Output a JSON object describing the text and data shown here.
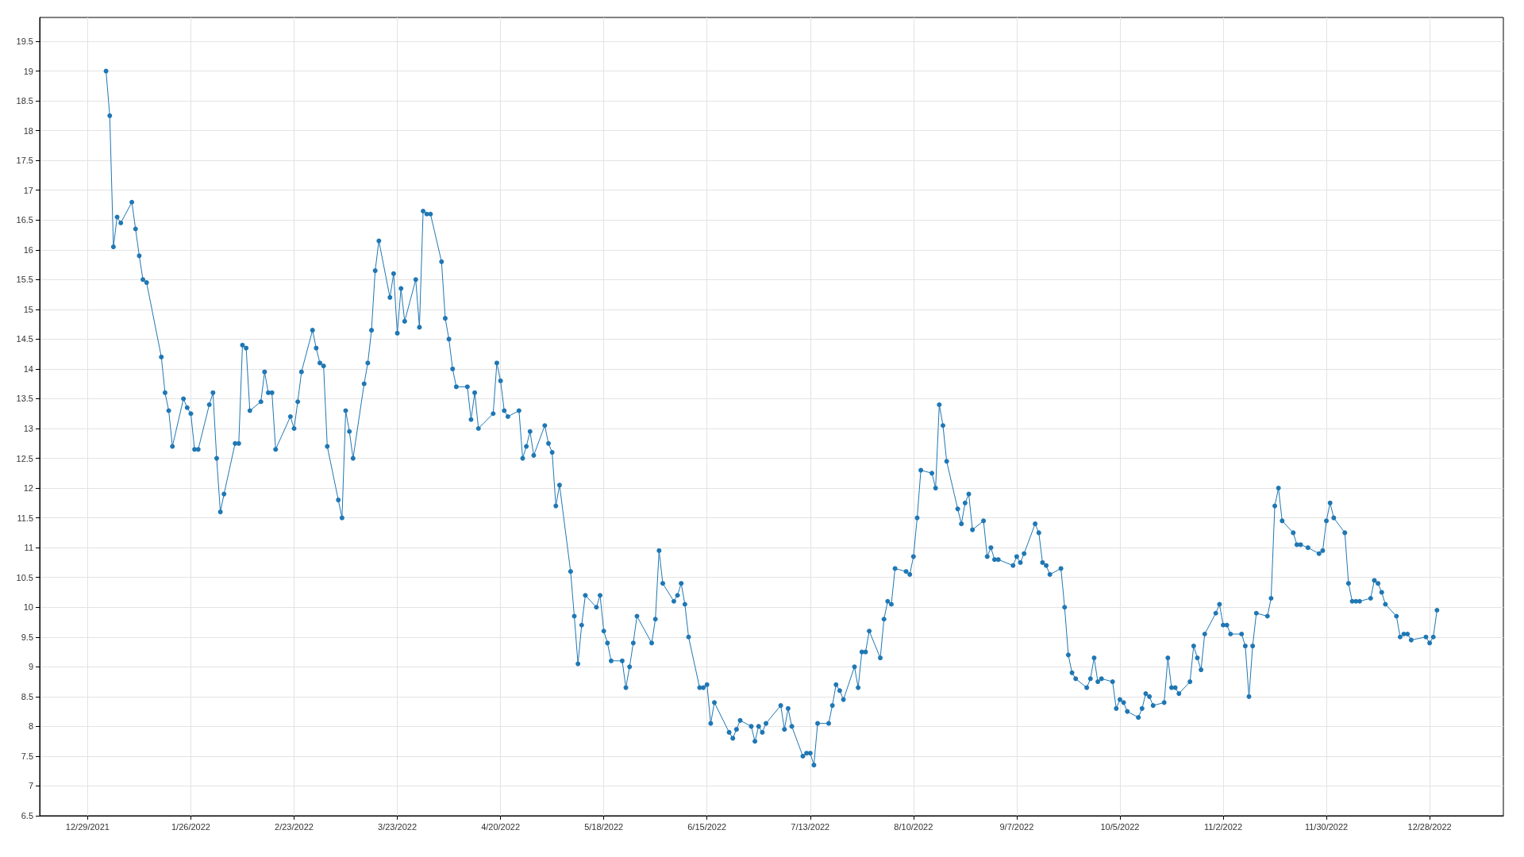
{
  "chart_data": {
    "type": "line",
    "marker": "circle",
    "line_style": "solid",
    "grid": true,
    "legend": false,
    "xlim": [
      "2021-12-16",
      "2023-01-17"
    ],
    "xticks": [
      {
        "value": "2021-12-29",
        "label": "12/29/2021"
      },
      {
        "value": "2022-01-26",
        "label": "1/26/2022"
      },
      {
        "value": "2022-02-23",
        "label": "2/23/2022"
      },
      {
        "value": "2022-03-23",
        "label": "3/23/2022"
      },
      {
        "value": "2022-04-20",
        "label": "4/20/2022"
      },
      {
        "value": "2022-05-18",
        "label": "5/18/2022"
      },
      {
        "value": "2022-06-15",
        "label": "6/15/2022"
      },
      {
        "value": "2022-07-13",
        "label": "7/13/2022"
      },
      {
        "value": "2022-08-10",
        "label": "8/10/2022"
      },
      {
        "value": "2022-09-07",
        "label": "9/7/2022"
      },
      {
        "value": "2022-10-05",
        "label": "10/5/2022"
      },
      {
        "value": "2022-11-02",
        "label": "11/2/2022"
      },
      {
        "value": "2022-11-30",
        "label": "11/30/2022"
      },
      {
        "value": "2022-12-28",
        "label": "12/28/2022"
      }
    ],
    "ylim": [
      6.5,
      19.9
    ],
    "yticks": [
      6.5,
      7,
      7.5,
      8,
      8.5,
      9,
      9.5,
      10,
      10.5,
      11,
      11.5,
      12,
      12.5,
      13,
      13.5,
      14,
      14.5,
      15,
      15.5,
      16,
      16.5,
      17,
      17.5,
      18,
      18.5,
      19,
      19.5
    ],
    "series": [
      {
        "color": "#1f77b4",
        "x": [
          "2022-01-03",
          "2022-01-04",
          "2022-01-05",
          "2022-01-06",
          "2022-01-07",
          "2022-01-10",
          "2022-01-11",
          "2022-01-12",
          "2022-01-13",
          "2022-01-14",
          "2022-01-18",
          "2022-01-19",
          "2022-01-20",
          "2022-01-21",
          "2022-01-24",
          "2022-01-25",
          "2022-01-26",
          "2022-01-27",
          "2022-01-28",
          "2022-01-31",
          "2022-02-01",
          "2022-02-02",
          "2022-02-03",
          "2022-02-04",
          "2022-02-07",
          "2022-02-08",
          "2022-02-09",
          "2022-02-10",
          "2022-02-11",
          "2022-02-14",
          "2022-02-15",
          "2022-02-16",
          "2022-02-17",
          "2022-02-18",
          "2022-02-22",
          "2022-02-23",
          "2022-02-24",
          "2022-02-25",
          "2022-02-28",
          "2022-03-01",
          "2022-03-02",
          "2022-03-03",
          "2022-03-04",
          "2022-03-07",
          "2022-03-08",
          "2022-03-09",
          "2022-03-10",
          "2022-03-11",
          "2022-03-14",
          "2022-03-15",
          "2022-03-16",
          "2022-03-17",
          "2022-03-18",
          "2022-03-21",
          "2022-03-22",
          "2022-03-23",
          "2022-03-24",
          "2022-03-25",
          "2022-03-28",
          "2022-03-29",
          "2022-03-30",
          "2022-03-31",
          "2022-04-01",
          "2022-04-04",
          "2022-04-05",
          "2022-04-06",
          "2022-04-07",
          "2022-04-08",
          "2022-04-11",
          "2022-04-12",
          "2022-04-13",
          "2022-04-14",
          "2022-04-18",
          "2022-04-19",
          "2022-04-20",
          "2022-04-21",
          "2022-04-22",
          "2022-04-25",
          "2022-04-26",
          "2022-04-27",
          "2022-04-28",
          "2022-04-29",
          "2022-05-02",
          "2022-05-03",
          "2022-05-04",
          "2022-05-05",
          "2022-05-06",
          "2022-05-09",
          "2022-05-10",
          "2022-05-11",
          "2022-05-12",
          "2022-05-13",
          "2022-05-16",
          "2022-05-17",
          "2022-05-18",
          "2022-05-19",
          "2022-05-20",
          "2022-05-23",
          "2022-05-24",
          "2022-05-25",
          "2022-05-26",
          "2022-05-27",
          "2022-05-31",
          "2022-06-01",
          "2022-06-02",
          "2022-06-03",
          "2022-06-06",
          "2022-06-07",
          "2022-06-08",
          "2022-06-09",
          "2022-06-10",
          "2022-06-13",
          "2022-06-14",
          "2022-06-15",
          "2022-06-16",
          "2022-06-17",
          "2022-06-21",
          "2022-06-22",
          "2022-06-23",
          "2022-06-24",
          "2022-06-27",
          "2022-06-28",
          "2022-06-29",
          "2022-06-30",
          "2022-07-01",
          "2022-07-05",
          "2022-07-06",
          "2022-07-07",
          "2022-07-08",
          "2022-07-11",
          "2022-07-12",
          "2022-07-13",
          "2022-07-14",
          "2022-07-15",
          "2022-07-18",
          "2022-07-19",
          "2022-07-20",
          "2022-07-21",
          "2022-07-22",
          "2022-07-25",
          "2022-07-26",
          "2022-07-27",
          "2022-07-28",
          "2022-07-29",
          "2022-08-01",
          "2022-08-02",
          "2022-08-03",
          "2022-08-04",
          "2022-08-05",
          "2022-08-08",
          "2022-08-09",
          "2022-08-10",
          "2022-08-11",
          "2022-08-12",
          "2022-08-15",
          "2022-08-16",
          "2022-08-17",
          "2022-08-18",
          "2022-08-19",
          "2022-08-22",
          "2022-08-23",
          "2022-08-24",
          "2022-08-25",
          "2022-08-26",
          "2022-08-29",
          "2022-08-30",
          "2022-08-31",
          "2022-09-01",
          "2022-09-02",
          "2022-09-06",
          "2022-09-07",
          "2022-09-08",
          "2022-09-09",
          "2022-09-12",
          "2022-09-13",
          "2022-09-14",
          "2022-09-15",
          "2022-09-16",
          "2022-09-19",
          "2022-09-20",
          "2022-09-21",
          "2022-09-22",
          "2022-09-23",
          "2022-09-26",
          "2022-09-27",
          "2022-09-28",
          "2022-09-29",
          "2022-09-30",
          "2022-10-03",
          "2022-10-04",
          "2022-10-05",
          "2022-10-06",
          "2022-10-07",
          "2022-10-10",
          "2022-10-11",
          "2022-10-12",
          "2022-10-13",
          "2022-10-14",
          "2022-10-17",
          "2022-10-18",
          "2022-10-19",
          "2022-10-20",
          "2022-10-21",
          "2022-10-24",
          "2022-10-25",
          "2022-10-26",
          "2022-10-27",
          "2022-10-28",
          "2022-10-31",
          "2022-11-01",
          "2022-11-02",
          "2022-11-03",
          "2022-11-04",
          "2022-11-07",
          "2022-11-08",
          "2022-11-09",
          "2022-11-10",
          "2022-11-11",
          "2022-11-14",
          "2022-11-15",
          "2022-11-16",
          "2022-11-17",
          "2022-11-18",
          "2022-11-21",
          "2022-11-22",
          "2022-11-23",
          "2022-11-25",
          "2022-11-28",
          "2022-11-29",
          "2022-11-30",
          "2022-12-01",
          "2022-12-02",
          "2022-12-05",
          "2022-12-06",
          "2022-12-07",
          "2022-12-08",
          "2022-12-09",
          "2022-12-12",
          "2022-12-13",
          "2022-12-14",
          "2022-12-15",
          "2022-12-16",
          "2022-12-19",
          "2022-12-20",
          "2022-12-21",
          "2022-12-22",
          "2022-12-23",
          "2022-12-27",
          "2022-12-28",
          "2022-12-29",
          "2022-12-30"
        ],
        "values": [
          19.0,
          18.25,
          16.05,
          16.55,
          16.45,
          16.8,
          16.35,
          15.9,
          15.5,
          15.45,
          14.2,
          13.6,
          13.3,
          12.7,
          13.5,
          13.35,
          13.25,
          12.65,
          12.65,
          13.4,
          13.6,
          12.5,
          11.6,
          11.9,
          12.75,
          12.75,
          14.4,
          14.35,
          13.3,
          13.45,
          13.95,
          13.6,
          13.6,
          12.65,
          13.2,
          13.0,
          13.45,
          13.95,
          14.65,
          14.35,
          14.1,
          14.05,
          12.7,
          11.8,
          11.5,
          13.3,
          12.95,
          12.5,
          13.75,
          14.1,
          14.65,
          15.65,
          16.15,
          15.2,
          15.6,
          14.6,
          15.35,
          14.8,
          15.5,
          14.7,
          16.65,
          16.6,
          16.6,
          15.8,
          14.85,
          14.5,
          14.0,
          13.7,
          13.7,
          13.15,
          13.6,
          13.0,
          13.25,
          14.1,
          13.8,
          13.3,
          13.2,
          13.3,
          12.5,
          12.7,
          12.95,
          12.55,
          13.05,
          12.75,
          12.6,
          11.7,
          12.05,
          10.6,
          9.85,
          9.05,
          9.7,
          10.2,
          10.0,
          10.2,
          9.6,
          9.4,
          9.1,
          9.1,
          8.65,
          9.0,
          9.4,
          9.85,
          9.4,
          9.8,
          10.95,
          10.4,
          10.1,
          10.2,
          10.4,
          10.05,
          9.5,
          8.65,
          8.65,
          8.7,
          8.05,
          8.4,
          7.9,
          7.8,
          7.95,
          8.1,
          8.0,
          7.75,
          8.0,
          7.9,
          8.05,
          8.35,
          7.95,
          8.3,
          8.0,
          7.5,
          7.55,
          7.55,
          7.35,
          8.05,
          8.05,
          8.35,
          8.7,
          8.6,
          8.45,
          9.0,
          8.65,
          9.25,
          9.25,
          9.6,
          9.15,
          9.8,
          10.1,
          10.05,
          10.65,
          10.6,
          10.55,
          10.85,
          11.5,
          12.3,
          12.25,
          12.0,
          13.4,
          13.05,
          12.45,
          11.65,
          11.4,
          11.75,
          11.9,
          11.3,
          11.45,
          10.85,
          11.0,
          10.8,
          10.8,
          10.7,
          10.85,
          10.75,
          10.9,
          11.4,
          11.25,
          10.75,
          10.7,
          10.55,
          10.65,
          10.0,
          9.2,
          8.9,
          8.8,
          8.65,
          8.8,
          9.15,
          8.75,
          8.8,
          8.75,
          8.3,
          8.45,
          8.4,
          8.25,
          8.15,
          8.3,
          8.55,
          8.5,
          8.35,
          8.4,
          9.15,
          8.65,
          8.65,
          8.55,
          8.75,
          9.35,
          9.15,
          8.95,
          9.55,
          9.9,
          10.05,
          9.7,
          9.7,
          9.55,
          9.55,
          9.35,
          8.5,
          9.35,
          9.9,
          9.85,
          10.15,
          11.7,
          12.0,
          11.45,
          11.25,
          11.05,
          11.05,
          11.0,
          10.9,
          10.95,
          11.45,
          11.75,
          11.5,
          11.25,
          10.4,
          10.1,
          10.1,
          10.1,
          10.15,
          10.45,
          10.4,
          10.25,
          10.05,
          9.85,
          9.5,
          9.55,
          9.55,
          9.45,
          9.5,
          9.4,
          9.5,
          9.95
        ]
      }
    ]
  }
}
